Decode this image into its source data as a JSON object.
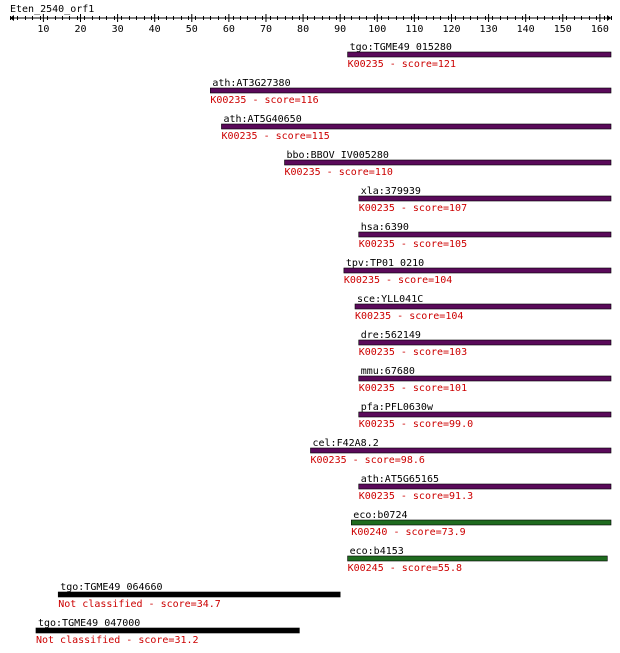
{
  "query": {
    "name": "Eten_2540_orf1",
    "length": 163
  },
  "axis": {
    "ticks": [
      10,
      20,
      30,
      40,
      50,
      60,
      70,
      80,
      90,
      100,
      110,
      120,
      130,
      140,
      150,
      160
    ]
  },
  "colors": {
    "axis": "#000000",
    "label": "#000000",
    "score_text": "#cc0000",
    "purple_bar": "#5a0a5a",
    "green_bar": "#1f6b1f",
    "black_bar": "#000000"
  },
  "hits": [
    {
      "name": "tgo:TGME49_015280",
      "ko": "K00235 - score=121",
      "start": 92,
      "end": 163,
      "color": "purple"
    },
    {
      "name": "ath:AT3G27380",
      "ko": "K00235 - score=116",
      "start": 55,
      "end": 163,
      "color": "purple"
    },
    {
      "name": "ath:AT5G40650",
      "ko": "K00235 - score=115",
      "start": 58,
      "end": 163,
      "color": "purple"
    },
    {
      "name": "bbo:BBOV_IV005280",
      "ko": "K00235 - score=110",
      "start": 75,
      "end": 163,
      "color": "purple"
    },
    {
      "name": "xla:379939",
      "ko": "K00235 - score=107",
      "start": 95,
      "end": 163,
      "color": "purple"
    },
    {
      "name": "hsa:6390",
      "ko": "K00235 - score=105",
      "start": 95,
      "end": 163,
      "color": "purple"
    },
    {
      "name": "tpv:TP01_0210",
      "ko": "K00235 - score=104",
      "start": 91,
      "end": 163,
      "color": "purple"
    },
    {
      "name": "sce:YLL041C",
      "ko": "K00235 - score=104",
      "start": 94,
      "end": 163,
      "color": "purple"
    },
    {
      "name": "dre:562149",
      "ko": "K00235 - score=103",
      "start": 95,
      "end": 163,
      "color": "purple"
    },
    {
      "name": "mmu:67680",
      "ko": "K00235 - score=101",
      "start": 95,
      "end": 163,
      "color": "purple"
    },
    {
      "name": "pfa:PFL0630w",
      "ko": "K00235 - score=99.0",
      "start": 95,
      "end": 163,
      "color": "purple"
    },
    {
      "name": "cel:F42A8.2",
      "ko": "K00235 - score=98.6",
      "start": 82,
      "end": 163,
      "color": "purple"
    },
    {
      "name": "ath:AT5G65165",
      "ko": "K00235 - score=91.3",
      "start": 95,
      "end": 163,
      "color": "purple"
    },
    {
      "name": "eco:b0724",
      "ko": "K00240 - score=73.9",
      "start": 93,
      "end": 163,
      "color": "green"
    },
    {
      "name": "eco:b4153",
      "ko": "K00245 - score=55.8",
      "start": 92,
      "end": 162,
      "color": "green"
    },
    {
      "name": "tgo:TGME49_064660",
      "ko": "Not classified - score=34.7",
      "start": 14,
      "end": 90,
      "color": "black"
    },
    {
      "name": "tgo:TGME49_047000",
      "ko": "Not classified - score=31.2",
      "start": 8,
      "end": 79,
      "color": "black"
    }
  ]
}
